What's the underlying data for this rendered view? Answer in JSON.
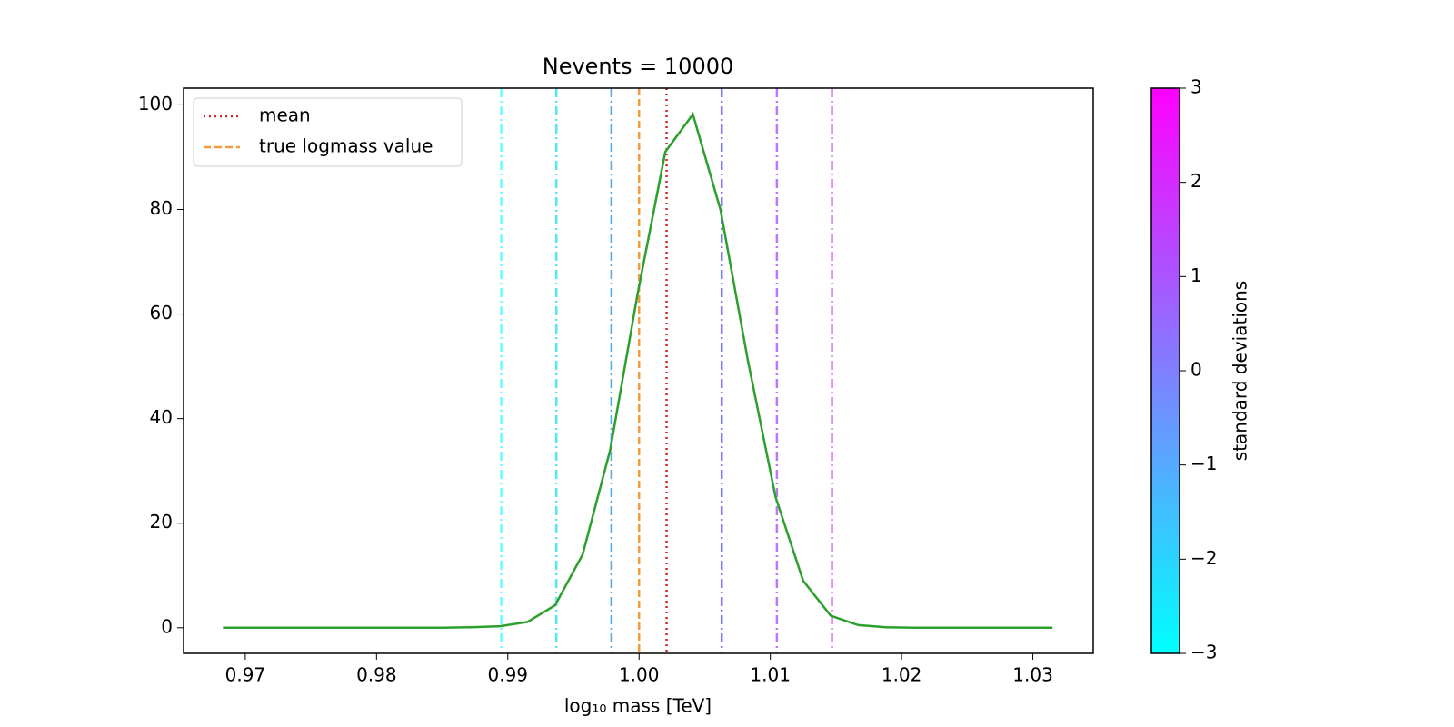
{
  "chart_data": {
    "type": "line",
    "title": "Nevents = 10000",
    "xlabel": "log₁₀ mass [TeV]",
    "x": [
      0.9683,
      0.9704,
      0.9725,
      0.9746,
      0.9767,
      0.9788,
      0.9809,
      0.983,
      0.9851,
      0.9872,
      0.9894,
      0.9915,
      0.9936,
      0.9957,
      0.9978,
      0.9999,
      1.002,
      1.0041,
      1.0062,
      1.0083,
      1.0104,
      1.0125,
      1.0146,
      1.0167,
      1.0188,
      1.0209,
      1.023,
      1.0251,
      1.0272,
      1.0294,
      1.0315
    ],
    "series": [
      {
        "color": "#2ca02c",
        "values": [
          0,
          0,
          0,
          0,
          0,
          0,
          0,
          0,
          0,
          0.1,
          0.3,
          1.1,
          4.3,
          14,
          34,
          64,
          91,
          98.2,
          80,
          51,
          25,
          9,
          2.3,
          0.5,
          0.1,
          0,
          0,
          0,
          0,
          0,
          0
        ]
      }
    ],
    "vlines": [
      {
        "name": "mean",
        "x": 1.0021,
        "color": "#d62728",
        "style": "dotted"
      },
      {
        "name": "true logmass value",
        "x": 1.0,
        "color": "#f59a3e",
        "style": "dashed"
      }
    ],
    "sigma_lines": {
      "x": [
        0.9895,
        0.9937,
        0.9979,
        1.0063,
        1.0105,
        1.0147
      ],
      "colors": [
        "#66ffff",
        "#55e6f5",
        "#55aaee",
        "#7a7af5",
        "#bb7af5",
        "#dd77f2"
      ],
      "style": "dashdot"
    },
    "xlim": [
      0.9653,
      1.0346
    ],
    "ylim": [
      -4.9,
      103.2
    ],
    "xticks": [
      0.97,
      0.98,
      0.99,
      {
        "value": 1,
        "label": "1.00"
      },
      1.01,
      1.02,
      1.03
    ],
    "yticks": [
      0,
      20,
      40,
      60,
      80,
      100
    ],
    "legend": "upper left",
    "colorbar": {
      "label": "standard deviations",
      "lim": [
        -3,
        3
      ],
      "colors": [
        "#00ffff",
        "#ff00ff"
      ],
      "ticks": [
        {
          "value": -3,
          "label": "−3"
        },
        {
          "value": -2,
          "label": "−2"
        },
        {
          "value": -1,
          "label": "−1"
        },
        0,
        1,
        2,
        3
      ]
    }
  }
}
